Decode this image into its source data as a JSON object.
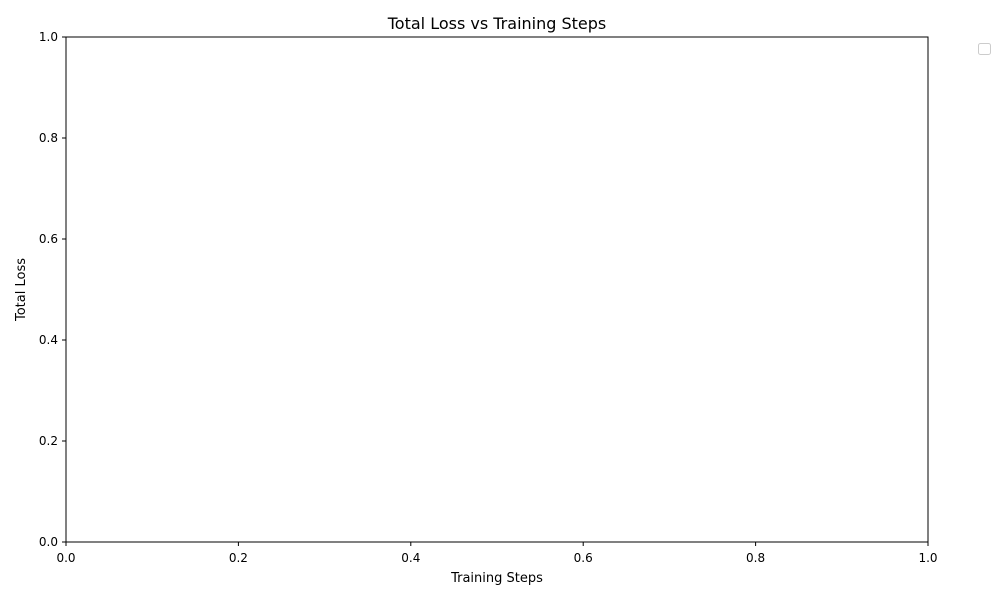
{
  "chart_data": {
    "type": "line",
    "title": "Total Loss vs Training Steps",
    "xlabel": "Training Steps",
    "ylabel": "Total Loss",
    "xlim": [
      0.0,
      1.0
    ],
    "ylim": [
      0.0,
      1.0
    ],
    "x_ticks": [
      0.0,
      0.2,
      0.4,
      0.6,
      0.8,
      1.0
    ],
    "y_ticks": [
      0.0,
      0.2,
      0.4,
      0.6,
      0.8,
      1.0
    ],
    "x_tick_labels": [
      "0.0",
      "0.2",
      "0.4",
      "0.6",
      "0.8",
      "1.0"
    ],
    "y_tick_labels": [
      "0.0",
      "0.2",
      "0.4",
      "0.6",
      "0.8",
      "1.0"
    ],
    "grid": false,
    "legend": "top-right, outside plot area, empty",
    "series": [],
    "colors": {
      "axis": "#000000",
      "background": "#ffffff",
      "legend_border": "#cccccc"
    }
  }
}
